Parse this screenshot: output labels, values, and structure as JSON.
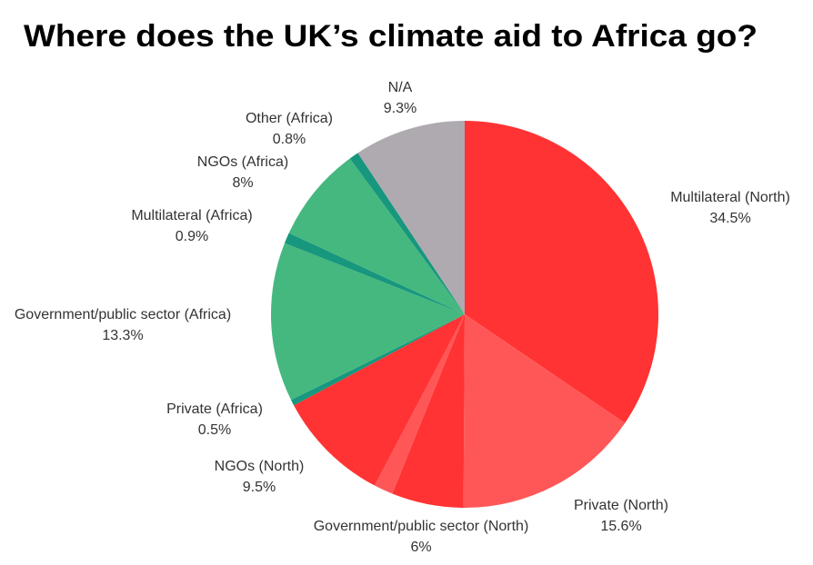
{
  "chart_data": {
    "type": "pie",
    "title": "Where does the UK’s climate aid to Africa go?",
    "categories": [
      "Multilateral (North)",
      "Private (North)",
      "Government/public sector (North)",
      null,
      "NGOs (North)",
      "Private (Africa)",
      "Government/public sector (Africa)",
      "Multilateral (Africa)",
      "NGOs (Africa)",
      "Other (Africa)",
      "N/A"
    ],
    "values": [
      34.5,
      15.6,
      6,
      1.6,
      9.5,
      0.5,
      13.3,
      0.9,
      8,
      0.8,
      9.3
    ],
    "value_labels": [
      "34.5%",
      "15.6%",
      "6%",
      null,
      "9.5%",
      "0.5%",
      "13.3%",
      "0.9%",
      "8%",
      "0.8%",
      "9.3%"
    ],
    "colors": [
      "#ff3333",
      "#ff5757",
      "#ff3333",
      "#ff5757",
      "#ff3333",
      "#17977d",
      "#45b87f",
      "#17977d",
      "#45b87f",
      "#17977d",
      "#aeaab0"
    ]
  }
}
